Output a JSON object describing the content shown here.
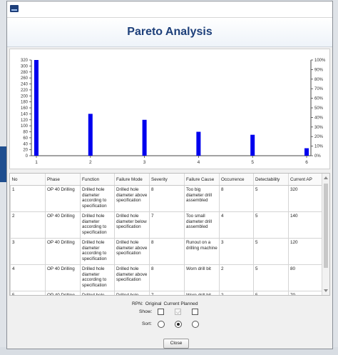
{
  "window": {
    "title_icon": "app-icon"
  },
  "banner": {
    "title": "Pareto Analysis"
  },
  "chart_data": {
    "type": "bar",
    "categories": [
      "1",
      "2",
      "3",
      "4",
      "5",
      "6"
    ],
    "values": [
      320,
      140,
      120,
      80,
      70,
      25
    ],
    "ylim": [
      0,
      320
    ],
    "y_ticks": [
      0,
      20,
      40,
      60,
      80,
      100,
      120,
      140,
      160,
      180,
      200,
      220,
      240,
      260,
      280,
      300,
      320
    ],
    "y2_ticks": [
      "0%",
      "10%",
      "20%",
      "30%",
      "40%",
      "50%",
      "60%",
      "70%",
      "80%",
      "90%",
      "100%"
    ],
    "bar_color": "#0000ee",
    "grid": false
  },
  "table": {
    "columns": [
      "No",
      "Phase",
      "Function",
      "Failure Mode",
      "Severity",
      "Failure Cause",
      "Occurrence",
      "Detectability",
      "Current AP"
    ],
    "rows": [
      [
        "1",
        "OP 40 Drilling",
        "Drilled hole diameter according to specification",
        "Drilled hole diameter above specification",
        "8",
        "Too big diameter drill assembled",
        "8",
        "5",
        "320"
      ],
      [
        "2",
        "OP 40 Drilling",
        "Drilled hole diameter according to specification",
        "Drilled hole diameter below specification",
        "7",
        "Too small diameter drill assembled",
        "4",
        "5",
        "140"
      ],
      [
        "3",
        "OP 40 Drilling",
        "Drilled hole diameter according to specification",
        "Drilled hole diameter above specification",
        "8",
        "Runout on a drilling machine",
        "3",
        "5",
        "120"
      ],
      [
        "4",
        "OP 40 Drilling",
        "Drilled hole diameter according to specification",
        "Drilled hole diameter above specification",
        "8",
        "Worn drill bit",
        "2",
        "5",
        "80"
      ],
      [
        "5",
        "OP 40 Drilling",
        "Drilled hole",
        "Drilled hole",
        "7",
        "Worn drill bit",
        "2",
        "5",
        "70"
      ]
    ]
  },
  "controls": {
    "rpn_label": "RPN:",
    "original_label": "Original",
    "current_planned_label": "Current Planned",
    "show_label": "Show:",
    "sort_label": "Sort:",
    "show": {
      "original": false,
      "current": false,
      "planned": false
    },
    "sort_selected": "current",
    "close_label": "Close"
  }
}
